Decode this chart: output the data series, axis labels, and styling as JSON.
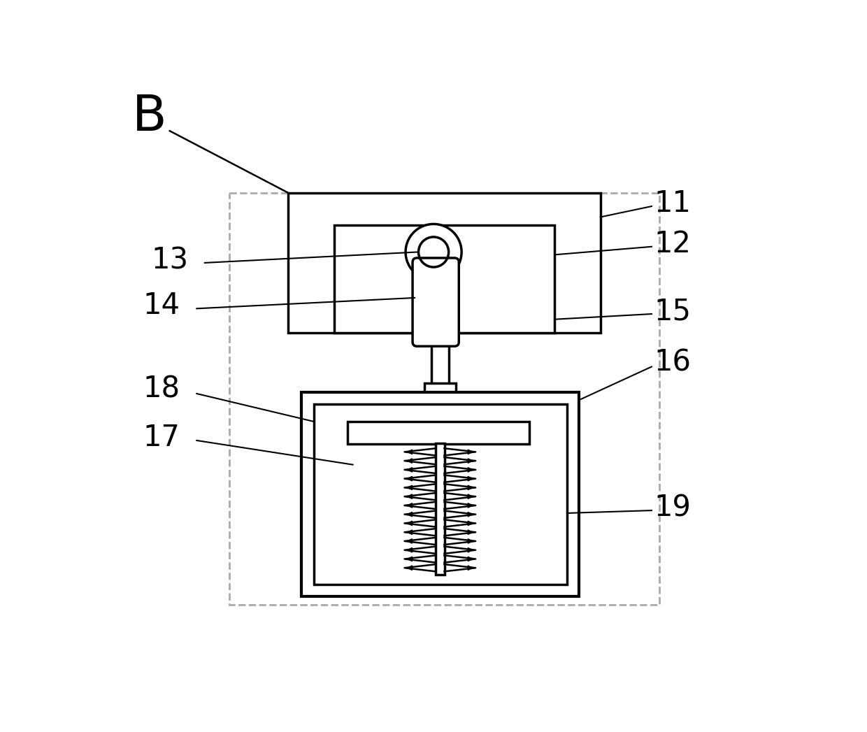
{
  "bg_color": "#ffffff",
  "line_color": "#000000",
  "dashed_color": "#aaaaaa",
  "figsize": [
    12.4,
    10.47
  ],
  "dpi": 100,
  "label_fontsize": 30,
  "B_fontsize": 52
}
